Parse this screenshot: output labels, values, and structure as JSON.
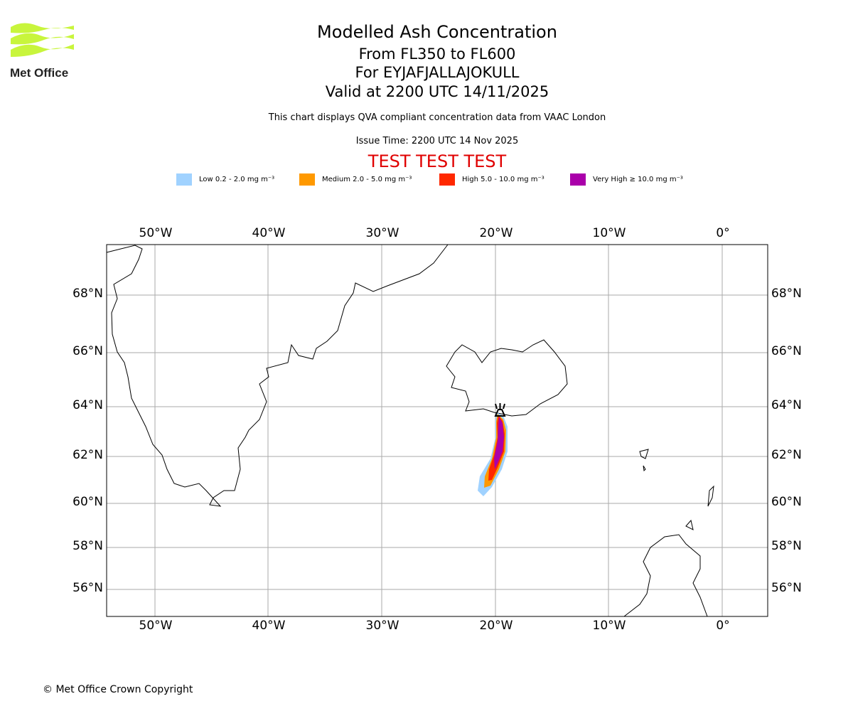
{
  "logo": {
    "text": "Met Office",
    "colors": {
      "waves": "#c8f53c",
      "text": "#222222"
    }
  },
  "header": {
    "title": "Modelled Ash Concentration",
    "levels": "From FL350 to FL600",
    "volcano": "For EYJAFJALLAJOKULL",
    "valid": "Valid at 2200 UTC 14/11/2025",
    "note": "This chart displays QVA compliant concentration data from VAAC London",
    "issue": "Issue Time: 2200 UTC 14 Nov 2025",
    "test": "TEST TEST TEST"
  },
  "legend": [
    {
      "label": "Low 0.2 - 2.0 mg m⁻³",
      "color": "#a0d2ff"
    },
    {
      "label": "Medium 2.0 - 5.0 mg m⁻³",
      "color": "#ff9900"
    },
    {
      "label": "High 5.0 - 10.0 mg m⁻³",
      "color": "#ff2800"
    },
    {
      "label": "Very High ≥ 10.0 mg m⁻³",
      "color": "#aa00aa"
    }
  ],
  "map": {
    "lon_labels": [
      "50°W",
      "40°W",
      "30°W",
      "20°W",
      "10°W",
      "0°"
    ],
    "lat_labels": [
      "68°N",
      "66°N",
      "64°N",
      "62°N",
      "60°N",
      "58°N",
      "56°N"
    ],
    "volcano_icon": "volcano-icon"
  },
  "footer": {
    "copyright": "© Met Office Crown Copyright"
  }
}
